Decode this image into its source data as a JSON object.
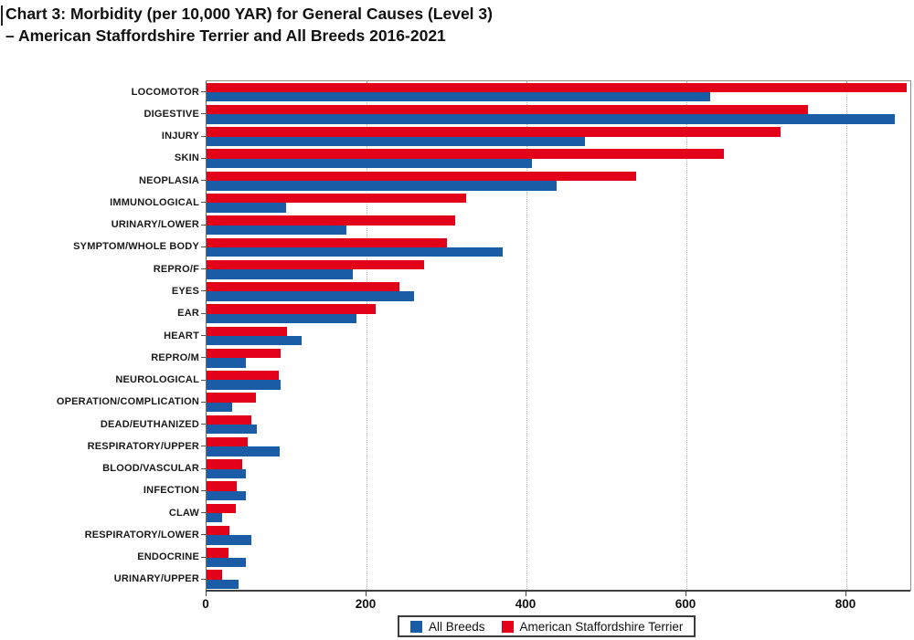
{
  "title": {
    "line1": "Chart 3: Morbidity (per 10,000 YAR) for General Causes (Level 3)",
    "line2": "–  American Staffordshire Terrier and All Breeds 2016-2021"
  },
  "legend": {
    "all_breeds_label": "All Breeds",
    "ast_label": "American Staffordshire Terrier"
  },
  "colors": {
    "all_breeds": "#1b5ca6",
    "ast": "#e30019",
    "gridline": "#b8b8b8",
    "axis": "#3f3f3f",
    "plot_border": "#909090"
  },
  "chart_data": {
    "type": "bar",
    "orientation": "horizontal",
    "title": "Chart 3: Morbidity (per 10,000 YAR) for General Causes (Level 3) – American Staffordshire Terrier and All Breeds 2016-2021",
    "xlabel": "Morbidity (per 10,000 YAR)",
    "ylabel": "General Causes (Level 3)",
    "xlim": [
      0,
      880
    ],
    "x_ticks": [
      0,
      200,
      400,
      600,
      800
    ],
    "grid": "vertical-dotted",
    "legend_position": "bottom",
    "categories": [
      "LOCOMOTOR",
      "DIGESTIVE",
      "INJURY",
      "SKIN",
      "NEOPLASIA",
      "IMMUNOLOGICAL",
      "URINARY/LOWER",
      "SYMPTOM/WHOLE BODY",
      "REPRO/F",
      "EYES",
      "EAR",
      "HEART",
      "REPRO/M",
      "NEUROLOGICAL",
      "OPERATION/COMPLICATION",
      "DEAD/EUTHANIZED",
      "RESPIRATORY/UPPER",
      "BLOOD/VASCULAR",
      "INFECTION",
      "CLAW",
      "RESPIRATORY/LOWER",
      "ENDOCRINE",
      "URINARY/UPPER"
    ],
    "series": [
      {
        "name": "All Breeds",
        "color": "#1b5ca6",
        "values": [
          630,
          860,
          473,
          407,
          438,
          99,
          175,
          370,
          183,
          259,
          187,
          119,
          49,
          92,
          32,
          63,
          91,
          49,
          49,
          19,
          56,
          49,
          40
        ]
      },
      {
        "name": "American Staffordshire Terrier",
        "color": "#e30019",
        "values": [
          875,
          752,
          718,
          647,
          537,
          325,
          311,
          300,
          272,
          241,
          211,
          100,
          93,
          90,
          62,
          56,
          51,
          45,
          38,
          37,
          29,
          27,
          19
        ]
      }
    ]
  }
}
